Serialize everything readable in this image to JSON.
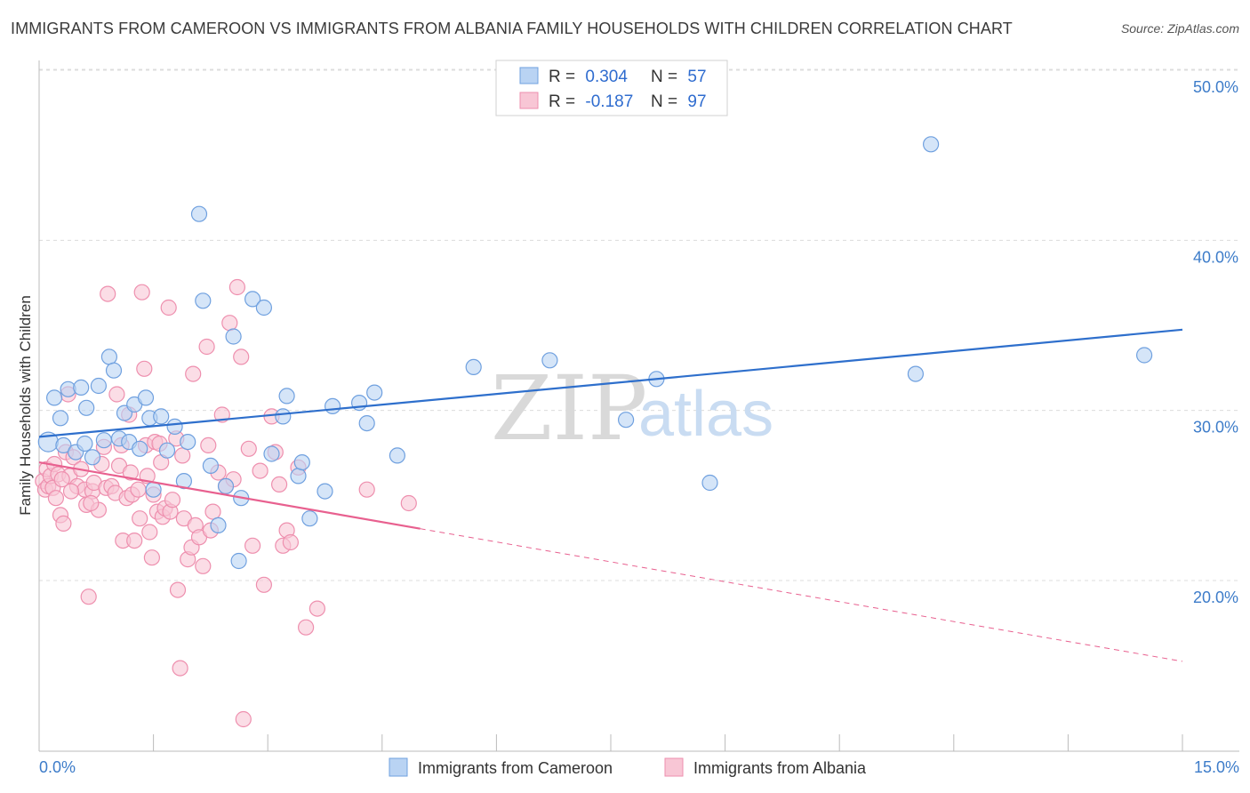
{
  "title": "IMMIGRANTS FROM CAMEROON VS IMMIGRANTS FROM ALBANIA FAMILY HOUSEHOLDS WITH CHILDREN CORRELATION CHART",
  "source": "Source: ZipAtlas.com",
  "watermark": {
    "zip": "ZIP",
    "atlas": "atlas"
  },
  "colors": {
    "cameroon_fill": "#b9d3f3",
    "cameroon_stroke": "#6fa0df",
    "cameroon_line": "#2e6fcc",
    "albania_fill": "#f8c6d5",
    "albania_stroke": "#ee8fae",
    "albania_line": "#e8608f",
    "grid": "#dcdcdc",
    "tick_label": "#3d7cc9"
  },
  "legend": {
    "rows": [
      {
        "r_label": "R =",
        "r_value": "0.304",
        "n_label": "N =",
        "n_value": "57"
      },
      {
        "r_label": "R =",
        "r_value": "-0.187",
        "n_label": "N =",
        "n_value": "97"
      }
    ]
  },
  "chart_data": {
    "type": "scatter",
    "xlabel": "",
    "ylabel": "Family Households with Children",
    "xlim": [
      0,
      15
    ],
    "ylim": [
      11,
      52
    ],
    "x_tick_labels": [
      "0.0%",
      "15.0%"
    ],
    "y_ticks": [
      20,
      30,
      40,
      50
    ],
    "y_tick_labels": [
      "20.0%",
      "30.0%",
      "40.0%",
      "50.0%"
    ],
    "grid": true,
    "legend_position": "bottom-center",
    "series": [
      {
        "name": "Immigrants from Cameroon",
        "r": 0.304,
        "n": 57,
        "trend": {
          "x0": 0,
          "y0": 28.5,
          "x1": 15,
          "y1": 34.8,
          "dashed_from": null
        },
        "points": [
          [
            0.12,
            28.2
          ],
          [
            0.2,
            30.8
          ],
          [
            0.28,
            29.6
          ],
          [
            0.32,
            28.0
          ],
          [
            0.38,
            31.3
          ],
          [
            0.48,
            27.6
          ],
          [
            0.55,
            31.4
          ],
          [
            0.62,
            30.2
          ],
          [
            0.7,
            27.3
          ],
          [
            0.78,
            31.5
          ],
          [
            0.85,
            28.3
          ],
          [
            0.92,
            33.2
          ],
          [
            0.98,
            32.4
          ],
          [
            1.05,
            28.4
          ],
          [
            1.12,
            29.9
          ],
          [
            1.18,
            28.2
          ],
          [
            1.25,
            30.4
          ],
          [
            1.32,
            27.8
          ],
          [
            1.4,
            30.8
          ],
          [
            1.45,
            29.6
          ],
          [
            1.5,
            25.4
          ],
          [
            1.6,
            29.7
          ],
          [
            1.68,
            27.7
          ],
          [
            1.78,
            29.1
          ],
          [
            1.9,
            25.9
          ],
          [
            1.95,
            28.2
          ],
          [
            2.1,
            41.6
          ],
          [
            2.15,
            36.5
          ],
          [
            2.25,
            26.8
          ],
          [
            2.35,
            23.3
          ],
          [
            2.45,
            25.6
          ],
          [
            2.55,
            34.4
          ],
          [
            2.62,
            21.2
          ],
          [
            2.65,
            24.9
          ],
          [
            2.8,
            36.6
          ],
          [
            2.95,
            36.1
          ],
          [
            3.05,
            27.5
          ],
          [
            3.2,
            29.7
          ],
          [
            3.25,
            30.9
          ],
          [
            3.4,
            26.2
          ],
          [
            3.45,
            27.0
          ],
          [
            3.55,
            23.7
          ],
          [
            3.75,
            25.3
          ],
          [
            3.85,
            30.3
          ],
          [
            4.2,
            30.5
          ],
          [
            4.3,
            29.3
          ],
          [
            4.4,
            31.1
          ],
          [
            4.7,
            27.4
          ],
          [
            5.7,
            32.6
          ],
          [
            6.7,
            33.0
          ],
          [
            7.7,
            29.5
          ],
          [
            8.1,
            31.9
          ],
          [
            8.8,
            25.8
          ],
          [
            11.5,
            32.2
          ],
          [
            11.7,
            45.7
          ],
          [
            14.5,
            33.3
          ],
          [
            0.6,
            28.1
          ]
        ]
      },
      {
        "name": "Immigrants from Albania",
        "r": -0.187,
        "n": 97,
        "trend": {
          "x0": 0,
          "y0": 27.0,
          "x1": 15,
          "y1": 15.3,
          "dashed_from": 5.0
        },
        "points": [
          [
            0.05,
            25.9
          ],
          [
            0.08,
            25.4
          ],
          [
            0.1,
            26.6
          ],
          [
            0.12,
            25.6
          ],
          [
            0.15,
            26.2
          ],
          [
            0.18,
            25.5
          ],
          [
            0.2,
            26.9
          ],
          [
            0.22,
            24.9
          ],
          [
            0.25,
            26.3
          ],
          [
            0.28,
            23.9
          ],
          [
            0.32,
            23.4
          ],
          [
            0.35,
            27.6
          ],
          [
            0.38,
            31.0
          ],
          [
            0.4,
            26.2
          ],
          [
            0.45,
            27.3
          ],
          [
            0.5,
            25.6
          ],
          [
            0.55,
            26.6
          ],
          [
            0.6,
            25.4
          ],
          [
            0.62,
            24.5
          ],
          [
            0.65,
            19.1
          ],
          [
            0.7,
            25.3
          ],
          [
            0.72,
            25.8
          ],
          [
            0.78,
            24.2
          ],
          [
            0.82,
            26.9
          ],
          [
            0.85,
            27.9
          ],
          [
            0.88,
            25.5
          ],
          [
            0.9,
            36.9
          ],
          [
            0.95,
            25.6
          ],
          [
            1.0,
            25.2
          ],
          [
            1.02,
            31.0
          ],
          [
            1.05,
            26.8
          ],
          [
            1.08,
            28.0
          ],
          [
            1.1,
            22.4
          ],
          [
            1.15,
            24.9
          ],
          [
            1.18,
            29.8
          ],
          [
            1.2,
            26.4
          ],
          [
            1.22,
            25.1
          ],
          [
            1.25,
            22.4
          ],
          [
            1.3,
            25.4
          ],
          [
            1.32,
            23.7
          ],
          [
            1.35,
            37.0
          ],
          [
            1.38,
            32.5
          ],
          [
            1.4,
            28.0
          ],
          [
            1.42,
            26.2
          ],
          [
            1.45,
            22.9
          ],
          [
            1.48,
            21.4
          ],
          [
            1.5,
            25.1
          ],
          [
            1.52,
            28.2
          ],
          [
            1.55,
            24.1
          ],
          [
            1.58,
            28.1
          ],
          [
            1.6,
            27.0
          ],
          [
            1.62,
            23.8
          ],
          [
            1.65,
            24.3
          ],
          [
            1.7,
            36.1
          ],
          [
            1.72,
            24.1
          ],
          [
            1.75,
            24.8
          ],
          [
            1.8,
            28.4
          ],
          [
            1.82,
            19.5
          ],
          [
            1.85,
            14.9
          ],
          [
            1.88,
            27.4
          ],
          [
            1.9,
            23.7
          ],
          [
            1.95,
            21.3
          ],
          [
            2.0,
            22.0
          ],
          [
            2.02,
            32.2
          ],
          [
            2.05,
            23.3
          ],
          [
            2.1,
            22.6
          ],
          [
            2.15,
            20.9
          ],
          [
            2.2,
            33.8
          ],
          [
            2.22,
            28.0
          ],
          [
            2.25,
            23.0
          ],
          [
            2.28,
            24.1
          ],
          [
            2.35,
            26.4
          ],
          [
            2.4,
            29.8
          ],
          [
            2.45,
            25.6
          ],
          [
            2.5,
            35.2
          ],
          [
            2.55,
            26.0
          ],
          [
            2.6,
            37.3
          ],
          [
            2.65,
            33.2
          ],
          [
            2.68,
            11.9
          ],
          [
            2.75,
            27.8
          ],
          [
            2.8,
            22.1
          ],
          [
            2.9,
            26.5
          ],
          [
            2.95,
            19.8
          ],
          [
            3.05,
            29.7
          ],
          [
            3.1,
            27.6
          ],
          [
            3.15,
            25.7
          ],
          [
            3.2,
            22.1
          ],
          [
            3.25,
            23.0
          ],
          [
            3.3,
            22.3
          ],
          [
            3.4,
            26.7
          ],
          [
            3.5,
            17.3
          ],
          [
            3.65,
            18.4
          ],
          [
            4.3,
            25.4
          ],
          [
            4.85,
            24.6
          ],
          [
            0.3,
            26.0
          ],
          [
            0.42,
            25.3
          ],
          [
            0.68,
            24.6
          ]
        ]
      }
    ]
  }
}
